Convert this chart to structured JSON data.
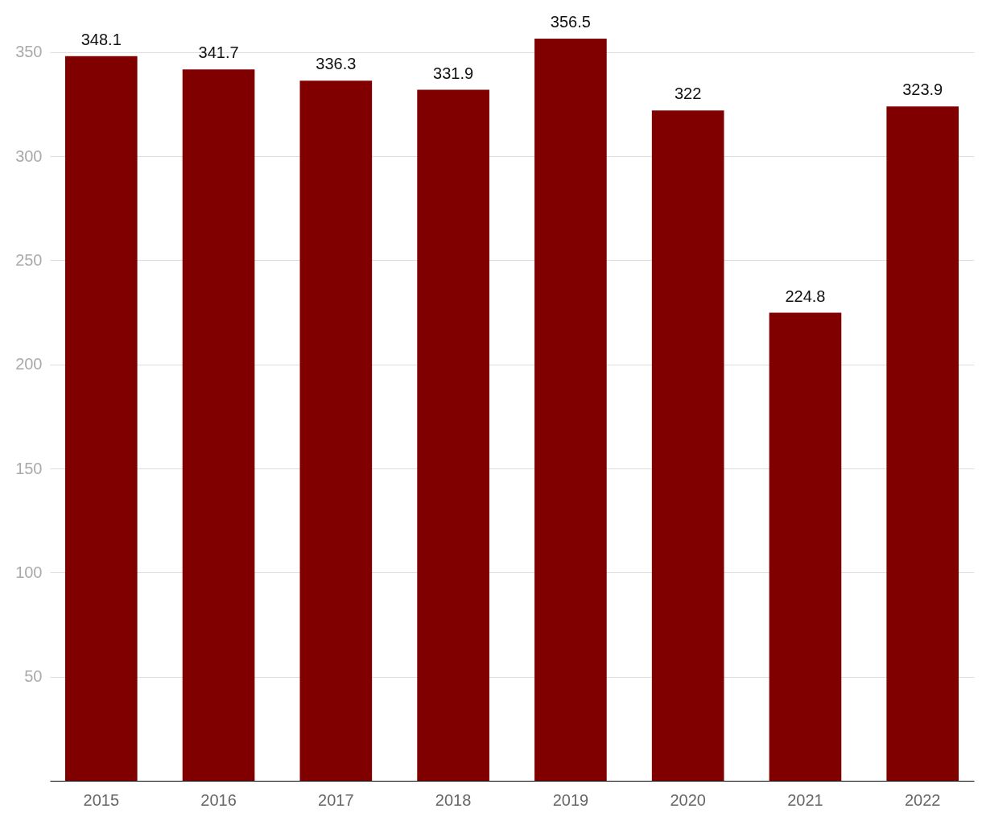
{
  "chart_data": {
    "type": "bar",
    "categories": [
      "2015",
      "2016",
      "2017",
      "2018",
      "2019",
      "2020",
      "2021",
      "2022"
    ],
    "values": [
      348.1,
      341.7,
      336.3,
      331.9,
      356.5,
      322,
      224.8,
      323.9
    ],
    "color": "#800000",
    "ylim": [
      0,
      356.5
    ],
    "yticks": [
      50,
      100,
      150,
      200,
      250,
      300,
      350
    ],
    "grid": "y",
    "data_labels": true
  }
}
